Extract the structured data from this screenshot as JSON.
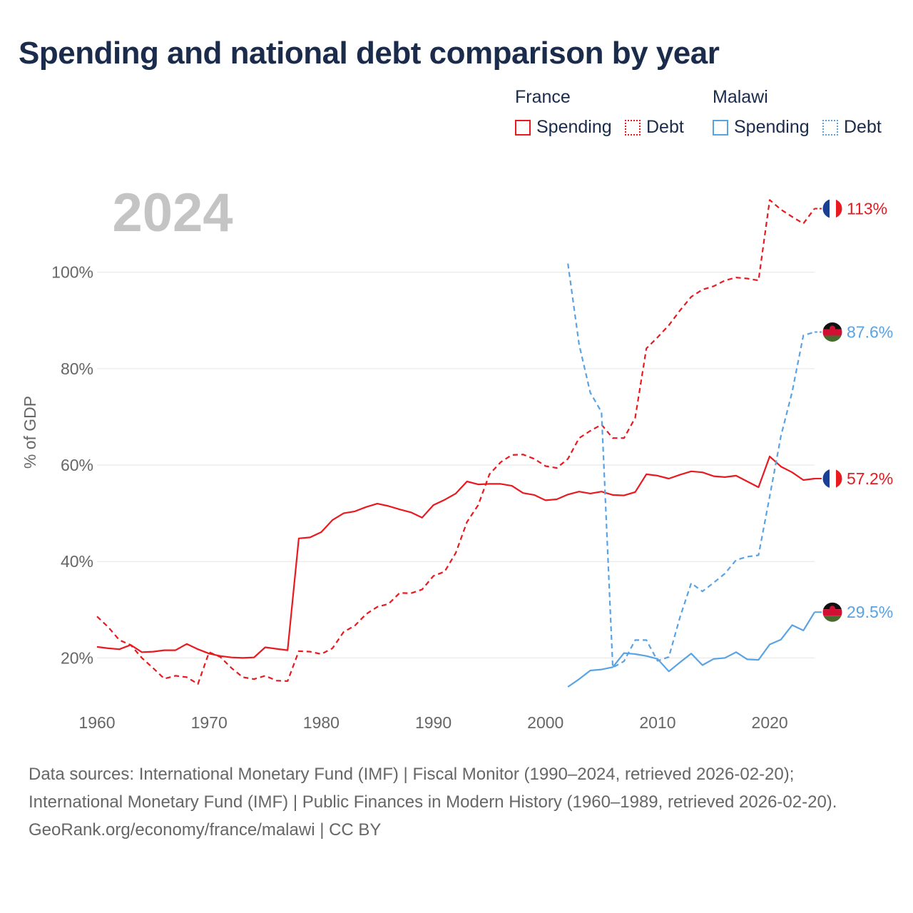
{
  "title": "Spending and national debt comparison by year",
  "legend": {
    "groups": [
      {
        "name": "France",
        "spending_label": "Spending",
        "debt_label": "Debt",
        "color": "#e8191f"
      },
      {
        "name": "Malawi",
        "spending_label": "Spending",
        "debt_label": "Debt",
        "color": "#5aa3e3"
      }
    ]
  },
  "year_label": "2024",
  "footer": {
    "sources": "Data sources: International Monetary Fund (IMF) | Fiscal Monitor (1990–2024, retrieved 2026-02-20); International Monetary Fund (IMF) | Public Finances in Modern History (1960–1989, retrieved 2026-02-20).",
    "credit": "GeoRank.org/economy/france/malawi | CC BY"
  },
  "chart_data": {
    "type": "line",
    "ylabel": "% of GDP",
    "xlabel": "",
    "xlim": [
      1960,
      2024
    ],
    "ylim": [
      10,
      118
    ],
    "x_ticks": [
      1960,
      1970,
      1980,
      1990,
      2000,
      2010,
      2020
    ],
    "y_ticks": [
      20,
      40,
      60,
      80,
      100
    ],
    "y_tick_labels": [
      "20%",
      "40%",
      "60%",
      "80%",
      "100%"
    ],
    "grid": true,
    "series": [
      {
        "name": "France Spending",
        "country": "France",
        "measure": "Spending",
        "color": "#e8191f",
        "dash": "solid",
        "end_label": "57.2%",
        "points": [
          [
            1960,
            22.3
          ],
          [
            1961,
            22.0
          ],
          [
            1962,
            21.8
          ],
          [
            1963,
            22.7
          ],
          [
            1964,
            21.2
          ],
          [
            1965,
            21.3
          ],
          [
            1966,
            21.6
          ],
          [
            1967,
            21.6
          ],
          [
            1968,
            22.9
          ],
          [
            1969,
            21.8
          ],
          [
            1970,
            20.9
          ],
          [
            1971,
            20.4
          ],
          [
            1972,
            20.1
          ],
          [
            1973,
            20.0
          ],
          [
            1974,
            20.1
          ],
          [
            1975,
            22.2
          ],
          [
            1976,
            21.9
          ],
          [
            1977,
            21.6
          ],
          [
            1978,
            44.8
          ],
          [
            1979,
            45.0
          ],
          [
            1980,
            46.1
          ],
          [
            1981,
            48.6
          ],
          [
            1982,
            50.0
          ],
          [
            1983,
            50.4
          ],
          [
            1984,
            51.3
          ],
          [
            1985,
            52.0
          ],
          [
            1986,
            51.5
          ],
          [
            1987,
            50.8
          ],
          [
            1988,
            50.2
          ],
          [
            1989,
            49.1
          ],
          [
            1990,
            51.7
          ],
          [
            1991,
            52.8
          ],
          [
            1992,
            54.1
          ],
          [
            1993,
            56.6
          ],
          [
            1994,
            56.0
          ],
          [
            1995,
            56.1
          ],
          [
            1996,
            56.1
          ],
          [
            1997,
            55.7
          ],
          [
            1998,
            54.2
          ],
          [
            1999,
            53.8
          ],
          [
            2000,
            52.7
          ],
          [
            2001,
            52.9
          ],
          [
            2002,
            53.9
          ],
          [
            2003,
            54.5
          ],
          [
            2004,
            54.1
          ],
          [
            2005,
            54.5
          ],
          [
            2006,
            53.8
          ],
          [
            2007,
            53.7
          ],
          [
            2008,
            54.4
          ],
          [
            2009,
            58.1
          ],
          [
            2010,
            57.8
          ],
          [
            2011,
            57.2
          ],
          [
            2012,
            58.0
          ],
          [
            2013,
            58.7
          ],
          [
            2014,
            58.5
          ],
          [
            2015,
            57.7
          ],
          [
            2016,
            57.5
          ],
          [
            2017,
            57.8
          ],
          [
            2018,
            56.6
          ],
          [
            2019,
            55.4
          ],
          [
            2020,
            61.8
          ],
          [
            2021,
            59.7
          ],
          [
            2022,
            58.5
          ],
          [
            2023,
            56.9
          ],
          [
            2024,
            57.2
          ]
        ]
      },
      {
        "name": "France Debt",
        "country": "France",
        "measure": "Debt",
        "color": "#e8191f",
        "dash": "dashed",
        "end_label": "113%",
        "points": [
          [
            1960,
            28.6
          ],
          [
            1961,
            26.4
          ],
          [
            1962,
            23.7
          ],
          [
            1963,
            22.7
          ],
          [
            1964,
            20.0
          ],
          [
            1965,
            17.9
          ],
          [
            1966,
            15.7
          ],
          [
            1967,
            16.3
          ],
          [
            1968,
            16.0
          ],
          [
            1969,
            14.6
          ],
          [
            1970,
            21.2
          ],
          [
            1971,
            20.2
          ],
          [
            1972,
            17.9
          ],
          [
            1973,
            16.0
          ],
          [
            1974,
            15.6
          ],
          [
            1975,
            16.3
          ],
          [
            1976,
            15.3
          ],
          [
            1977,
            15.2
          ],
          [
            1978,
            21.4
          ],
          [
            1979,
            21.3
          ],
          [
            1980,
            20.8
          ],
          [
            1981,
            22.0
          ],
          [
            1982,
            25.4
          ],
          [
            1983,
            26.7
          ],
          [
            1984,
            29.1
          ],
          [
            1985,
            30.6
          ],
          [
            1986,
            31.2
          ],
          [
            1987,
            33.5
          ],
          [
            1988,
            33.4
          ],
          [
            1989,
            34.2
          ],
          [
            1990,
            37.0
          ],
          [
            1991,
            37.9
          ],
          [
            1992,
            41.8
          ],
          [
            1993,
            48.2
          ],
          [
            1994,
            51.7
          ],
          [
            1995,
            58.1
          ],
          [
            1996,
            60.6
          ],
          [
            1997,
            62.1
          ],
          [
            1998,
            62.2
          ],
          [
            1999,
            61.3
          ],
          [
            2000,
            59.8
          ],
          [
            2001,
            59.4
          ],
          [
            2002,
            61.3
          ],
          [
            2003,
            65.6
          ],
          [
            2004,
            67.1
          ],
          [
            2005,
            68.4
          ],
          [
            2006,
            65.6
          ],
          [
            2007,
            65.6
          ],
          [
            2008,
            69.8
          ],
          [
            2009,
            84.2
          ],
          [
            2010,
            86.5
          ],
          [
            2011,
            89.0
          ],
          [
            2012,
            92.1
          ],
          [
            2013,
            94.9
          ],
          [
            2014,
            96.4
          ],
          [
            2015,
            97.1
          ],
          [
            2016,
            98.3
          ],
          [
            2017,
            98.9
          ],
          [
            2018,
            98.7
          ],
          [
            2019,
            98.3
          ],
          [
            2020,
            115.0
          ],
          [
            2021,
            113.0
          ],
          [
            2022,
            111.5
          ],
          [
            2023,
            110.1
          ],
          [
            2024,
            113.2
          ]
        ]
      },
      {
        "name": "Malawi Spending",
        "country": "Malawi",
        "measure": "Spending",
        "color": "#5aa3e3",
        "dash": "solid",
        "end_label": "29.5%",
        "points": [
          [
            2002,
            14.0
          ],
          [
            2003,
            15.6
          ],
          [
            2004,
            17.4
          ],
          [
            2005,
            17.6
          ],
          [
            2006,
            18.1
          ],
          [
            2007,
            21.0
          ],
          [
            2008,
            20.8
          ],
          [
            2009,
            20.4
          ],
          [
            2010,
            19.8
          ],
          [
            2011,
            17.2
          ],
          [
            2012,
            19.1
          ],
          [
            2013,
            20.9
          ],
          [
            2014,
            18.5
          ],
          [
            2015,
            19.8
          ],
          [
            2016,
            20.0
          ],
          [
            2017,
            21.2
          ],
          [
            2018,
            19.7
          ],
          [
            2019,
            19.6
          ],
          [
            2020,
            22.8
          ],
          [
            2021,
            23.8
          ],
          [
            2022,
            26.8
          ],
          [
            2023,
            25.7
          ],
          [
            2024,
            29.5
          ]
        ]
      },
      {
        "name": "Malawi Debt",
        "country": "Malawi",
        "measure": "Debt",
        "color": "#5aa3e3",
        "dash": "dashed",
        "end_label": "87.6%",
        "points": [
          [
            2002,
            101.8
          ],
          [
            2003,
            85.0
          ],
          [
            2004,
            75.0
          ],
          [
            2005,
            71.0
          ],
          [
            2006,
            18.0
          ],
          [
            2007,
            19.3
          ],
          [
            2008,
            23.7
          ],
          [
            2009,
            23.7
          ],
          [
            2010,
            19.4
          ],
          [
            2011,
            20.2
          ],
          [
            2012,
            28.5
          ],
          [
            2013,
            35.5
          ],
          [
            2014,
            33.8
          ],
          [
            2015,
            35.6
          ],
          [
            2016,
            37.5
          ],
          [
            2017,
            40.3
          ],
          [
            2018,
            41.0
          ],
          [
            2019,
            41.3
          ],
          [
            2020,
            53.5
          ],
          [
            2021,
            66.0
          ],
          [
            2022,
            75.2
          ],
          [
            2023,
            86.9
          ],
          [
            2024,
            87.6
          ]
        ]
      }
    ]
  }
}
